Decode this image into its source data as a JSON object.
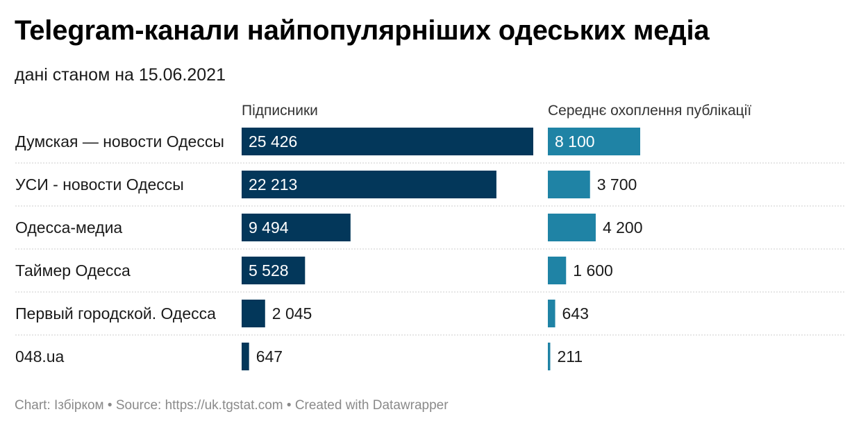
{
  "title": "Telegram-канали найпопулярніших одеських медіа",
  "subtitle": "дані станом на 15.06.2021",
  "footer": "Chart: Ізбірком • Source: https://uk.tgstat.com • Created with Datawrapper",
  "colors": {
    "subscribers": "#03375a",
    "reach": "#1f83a5",
    "separator": "#cccccc",
    "label_inside": "#ffffff",
    "label_outside": "#1a1a1a"
  },
  "chart_data": {
    "type": "bar",
    "orientation": "horizontal",
    "categories": [
      "Думская — новости Одессы",
      "УСИ - новости Одессы",
      "Одесса-медиа",
      "Таймер Одесса",
      "Первый городской. Одесса",
      "048.ua"
    ],
    "series": [
      {
        "name": "Підписники",
        "values": [
          25426,
          22213,
          9494,
          5528,
          2045,
          647
        ],
        "labels": [
          "25 426",
          "22 213",
          "9 494",
          "5 528",
          "2 045",
          "647"
        ]
      },
      {
        "name": "Середнє охоплення публікації",
        "values": [
          8100,
          3700,
          4200,
          1600,
          643,
          211
        ],
        "labels": [
          "8 100",
          "3 700",
          "4 200",
          "1 600",
          "643",
          "211"
        ]
      }
    ]
  }
}
